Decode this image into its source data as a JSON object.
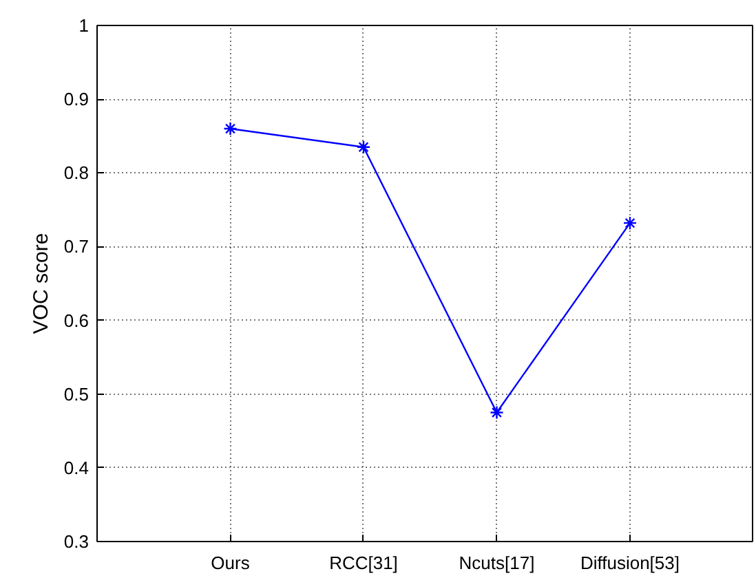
{
  "chart_data": {
    "type": "line",
    "ylabel": "VOC score",
    "categories": [
      "Ours",
      "RCC[31]",
      "Ncuts[17]",
      "Diffusion[53]"
    ],
    "values": [
      0.86,
      0.835,
      0.475,
      0.732
    ],
    "color": "#0000ff",
    "ylim": [
      0.3,
      1
    ],
    "yticks": [
      0.3,
      0.4,
      0.5,
      0.6,
      0.7,
      0.8,
      0.9,
      1
    ],
    "grid": true,
    "marker": "cross",
    "line_style": "solid"
  }
}
